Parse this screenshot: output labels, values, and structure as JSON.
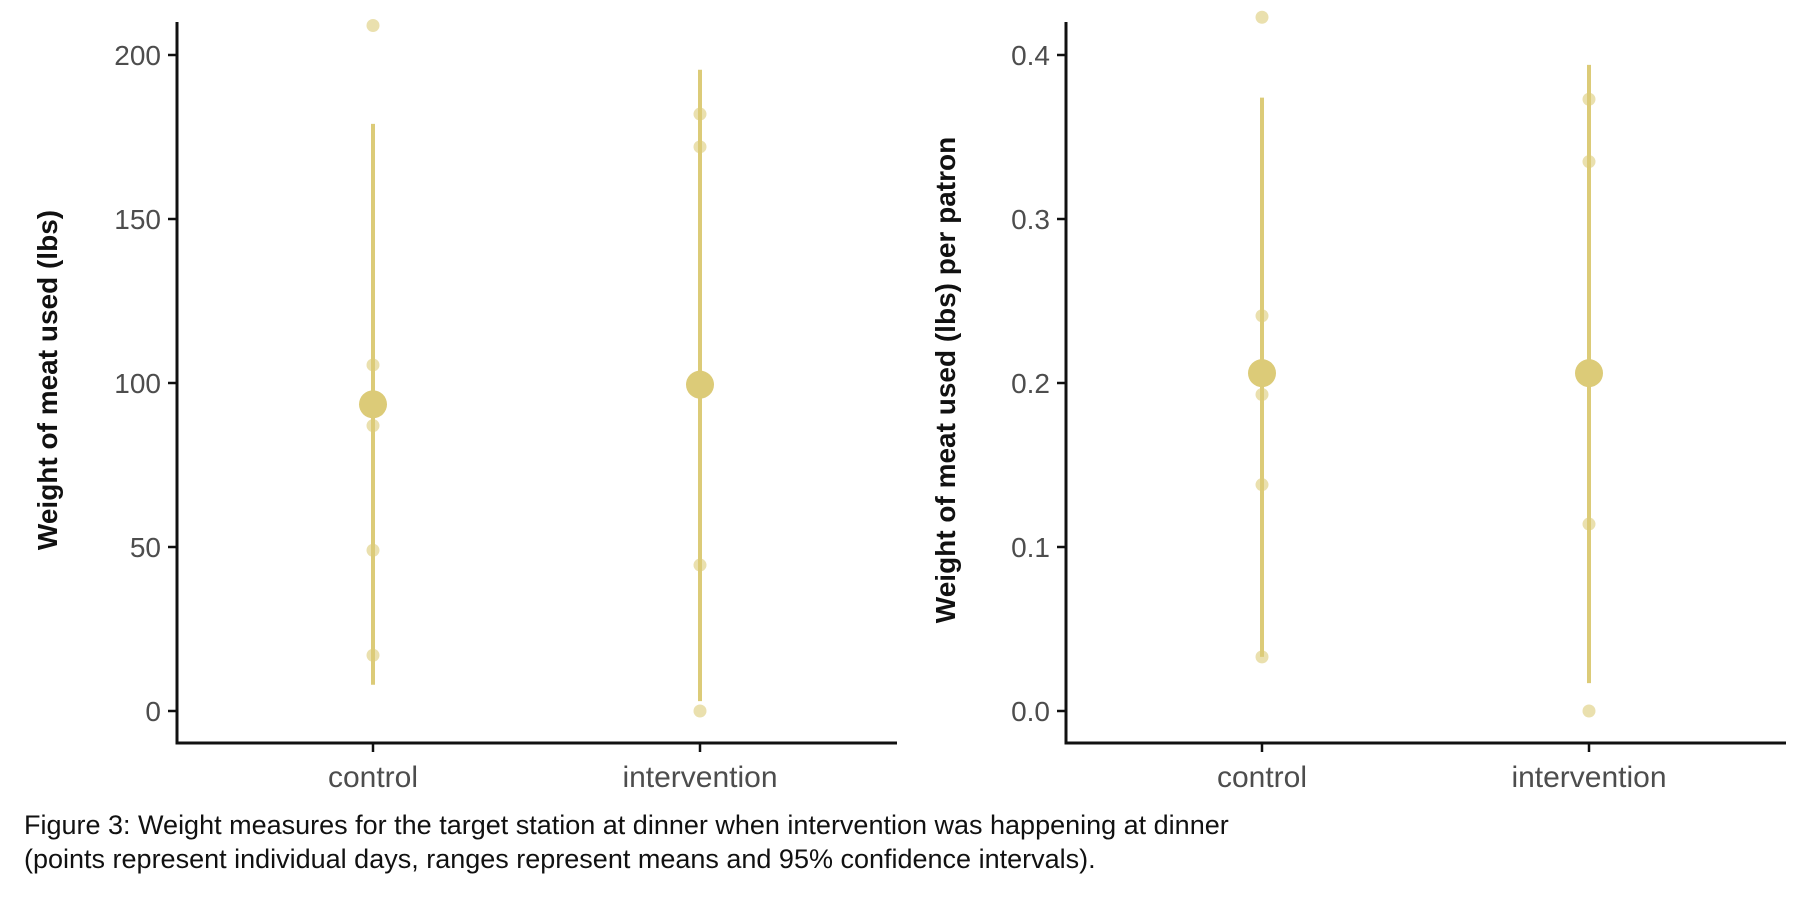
{
  "colors": {
    "points": "#dccb78",
    "axis": "#111111",
    "tick_text": "#4d4d4d"
  },
  "caption": {
    "line1": "Figure 3: Weight measures for the target station at dinner when intervention was happening at dinner",
    "line2": "(points represent individual days, ranges represent means and 95% confidence intervals)."
  },
  "chart_data": [
    {
      "type": "scatter",
      "ylabel": "Weight of meat used (lbs)",
      "xlabel": "",
      "categories": [
        "control",
        "intervention"
      ],
      "ylim": [
        -10,
        220
      ],
      "yticks": [
        0,
        50,
        100,
        150,
        200
      ],
      "ytick_labels": [
        "0",
        "50",
        "100",
        "150",
        "200"
      ],
      "grid": false,
      "points": [
        {
          "category": "control",
          "values": [
            209,
            105.5,
            87,
            49,
            17
          ]
        },
        {
          "category": "intervention",
          "values": [
            182,
            172,
            44.5,
            0
          ]
        }
      ],
      "ranges": [
        {
          "category": "control",
          "mean": 93.5,
          "low": 8,
          "high": 179
        },
        {
          "category": "intervention",
          "mean": 99.5,
          "low": 3,
          "high": 195.5
        }
      ]
    },
    {
      "type": "scatter",
      "ylabel": "Weight of meat used (lbs) per patron",
      "xlabel": "",
      "categories": [
        "control",
        "intervention"
      ],
      "ylim": [
        -0.02,
        0.44
      ],
      "yticks": [
        0.0,
        0.1,
        0.2,
        0.3,
        0.4
      ],
      "ytick_labels": [
        "0.0",
        "0.1",
        "0.2",
        "0.3",
        "0.4"
      ],
      "grid": false,
      "points": [
        {
          "category": "control",
          "values": [
            0.423,
            0.241,
            0.193,
            0.138,
            0.033
          ]
        },
        {
          "category": "intervention",
          "values": [
            0.373,
            0.335,
            0.114,
            0.0
          ]
        }
      ],
      "ranges": [
        {
          "category": "control",
          "mean": 0.206,
          "low": 0.033,
          "high": 0.374
        },
        {
          "category": "intervention",
          "mean": 0.206,
          "low": 0.017,
          "high": 0.394
        }
      ]
    }
  ]
}
